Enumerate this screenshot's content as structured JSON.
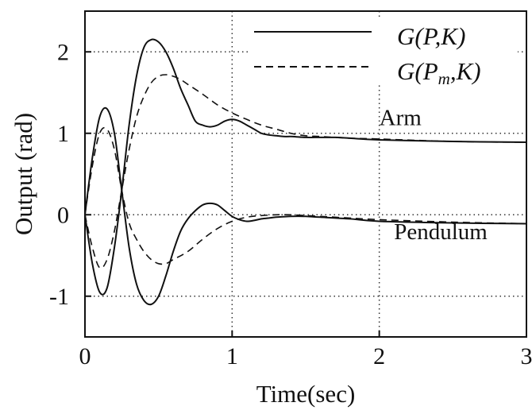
{
  "chart_data": {
    "type": "line",
    "xlabel": "Time(sec)",
    "ylabel": "Output (rad)",
    "xlim": [
      0,
      3
    ],
    "ylim": [
      -1.5,
      2.5
    ],
    "xticks": [
      0,
      1,
      2,
      3
    ],
    "yticks": [
      -1,
      0,
      1,
      2
    ],
    "xtick_labels": [
      "0",
      "1",
      "2",
      "3"
    ],
    "ytick_labels": [
      "-1",
      "0",
      "1",
      "2"
    ],
    "grid": true,
    "grid_style": "dotted",
    "legend_position": "top-right",
    "legend": [
      {
        "name": "G(P,K)",
        "main": "G(P,",
        "sub": "",
        "tail": "K)",
        "style": "solid"
      },
      {
        "name": "G(Pm,K)",
        "main": "G(P",
        "sub": "m",
        "tail": ",K)",
        "style": "dashed"
      }
    ],
    "annotations": [
      {
        "text": "Arm",
        "x": 2.0,
        "y": 1.1
      },
      {
        "text": "Pendulum",
        "x": 2.1,
        "y": -0.3
      }
    ],
    "series": [
      {
        "legend_index": 0,
        "style": "solid",
        "group": "Arm",
        "x": [
          0,
          0.05,
          0.1,
          0.15,
          0.2,
          0.25,
          0.3,
          0.35,
          0.4,
          0.45,
          0.5,
          0.55,
          0.6,
          0.65,
          0.7,
          0.75,
          0.8,
          0.85,
          0.9,
          0.95,
          1.0,
          1.05,
          1.1,
          1.15,
          1.2,
          1.25,
          1.3,
          1.35,
          1.4,
          1.5,
          1.6,
          1.7,
          1.8,
          2.0,
          2.5,
          3.0
        ],
        "y": [
          0,
          -0.6,
          -0.95,
          -0.9,
          -0.4,
          0.3,
          1.1,
          1.7,
          2.05,
          2.15,
          2.12,
          2.0,
          1.8,
          1.55,
          1.35,
          1.15,
          1.1,
          1.08,
          1.1,
          1.15,
          1.17,
          1.15,
          1.1,
          1.05,
          1.0,
          0.98,
          0.97,
          0.96,
          0.96,
          0.95,
          0.95,
          0.95,
          0.94,
          0.92,
          0.9,
          0.89
        ]
      },
      {
        "legend_index": 1,
        "style": "dashed",
        "group": "Arm",
        "x": [
          0,
          0.05,
          0.1,
          0.15,
          0.2,
          0.25,
          0.3,
          0.35,
          0.4,
          0.45,
          0.5,
          0.55,
          0.6,
          0.65,
          0.7,
          0.8,
          0.9,
          1.0,
          1.1,
          1.2,
          1.3,
          1.4,
          1.5,
          1.6,
          1.8,
          2.0,
          2.5,
          3.0
        ],
        "y": [
          0,
          -0.4,
          -0.65,
          -0.55,
          -0.2,
          0.3,
          0.8,
          1.2,
          1.45,
          1.62,
          1.7,
          1.72,
          1.7,
          1.66,
          1.6,
          1.48,
          1.35,
          1.25,
          1.17,
          1.1,
          1.05,
          1.0,
          0.97,
          0.96,
          0.94,
          0.93,
          0.9,
          0.89
        ]
      },
      {
        "legend_index": 0,
        "style": "solid",
        "group": "Pendulum",
        "x": [
          0,
          0.05,
          0.1,
          0.15,
          0.2,
          0.25,
          0.3,
          0.35,
          0.4,
          0.45,
          0.5,
          0.55,
          0.6,
          0.65,
          0.7,
          0.75,
          0.8,
          0.85,
          0.9,
          0.95,
          1.0,
          1.05,
          1.1,
          1.15,
          1.2,
          1.25,
          1.3,
          1.4,
          1.5,
          1.6,
          1.8,
          2.0,
          2.5,
          3.0
        ],
        "y": [
          0,
          0.7,
          1.2,
          1.3,
          1.0,
          0.3,
          -0.4,
          -0.85,
          -1.05,
          -1.1,
          -1.0,
          -0.75,
          -0.45,
          -0.2,
          -0.05,
          0.05,
          0.12,
          0.14,
          0.12,
          0.05,
          -0.02,
          -0.06,
          -0.08,
          -0.07,
          -0.05,
          -0.04,
          -0.03,
          -0.02,
          -0.02,
          -0.03,
          -0.05,
          -0.08,
          -0.1,
          -0.11
        ]
      },
      {
        "legend_index": 1,
        "style": "dashed",
        "group": "Pendulum",
        "x": [
          0,
          0.05,
          0.1,
          0.15,
          0.2,
          0.25,
          0.3,
          0.35,
          0.4,
          0.45,
          0.5,
          0.55,
          0.6,
          0.7,
          0.8,
          0.9,
          1.0,
          1.1,
          1.2,
          1.3,
          1.4,
          1.5,
          1.6,
          1.8,
          2.0,
          2.5,
          3.0
        ],
        "y": [
          0,
          0.6,
          1.0,
          1.05,
          0.8,
          0.3,
          -0.1,
          -0.3,
          -0.45,
          -0.55,
          -0.6,
          -0.6,
          -0.55,
          -0.45,
          -0.3,
          -0.17,
          -0.08,
          -0.03,
          -0.01,
          0.0,
          0.0,
          -0.01,
          -0.02,
          -0.04,
          -0.06,
          -0.09,
          -0.11
        ]
      }
    ]
  }
}
